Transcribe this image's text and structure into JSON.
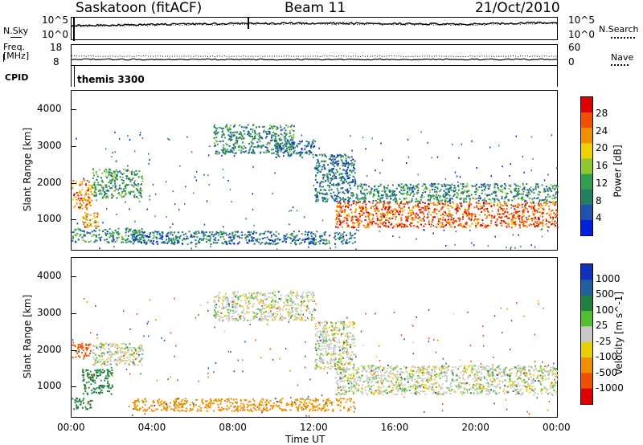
{
  "header": {
    "station": "Saskatoon (fitACF)",
    "beam": "Beam 11",
    "date": "21/Oct/2010"
  },
  "noise_panel": {
    "left_label": "N.Sky",
    "right_label": "N.Search",
    "left_ticks": [
      "10^5",
      "10^0"
    ],
    "right_ticks": [
      "10^5",
      "10^0"
    ]
  },
  "freq_panel": {
    "left_label_1": "Freq.",
    "left_label_2": "[MHz]",
    "right_label": "Nave",
    "left_ticks": [
      "18",
      "8"
    ],
    "right_ticks": [
      "60",
      "0"
    ]
  },
  "cpid_panel": {
    "label": "CPID",
    "program": "themis 3300"
  },
  "colors": {
    "power_scale": [
      "#0020e0",
      "#2050b0",
      "#208060",
      "#30a050",
      "#90c830",
      "#f0d000",
      "#f09000",
      "#f05000",
      "#e00000"
    ],
    "velocity_scale": [
      "#1030c0",
      "#2060a0",
      "#208040",
      "#50c030",
      "#c8c8c8",
      "#e8d000",
      "#f09000",
      "#f05000",
      "#e00000"
    ]
  },
  "chart_data": [
    {
      "type": "heatmap",
      "title": "",
      "parameter": "Power",
      "xlabel": "",
      "ylabel": "Slant Range [km]",
      "xlim": [
        "00:00",
        "24:00"
      ],
      "ylim": [
        180,
        4500
      ],
      "x_ticks": [
        "00:00",
        "04:00",
        "08:00",
        "12:00",
        "16:00",
        "20:00",
        "00:00"
      ],
      "y_ticks": [
        1000,
        2000,
        3000,
        4000
      ],
      "colorbar_label": "Power [dB]",
      "colorbar_ticks": [
        "28",
        "24",
        "20",
        "16",
        "12",
        "8",
        "4"
      ],
      "colorbar_range": [
        0,
        32
      ],
      "regions": [
        {
          "t": [
            0.0,
            1.0
          ],
          "range": [
            1300,
            2100
          ],
          "level": 24
        },
        {
          "t": [
            0.5,
            1.3
          ],
          "range": [
            800,
            1200
          ],
          "level": 22
        },
        {
          "t": [
            1.0,
            3.5
          ],
          "range": [
            1600,
            2400
          ],
          "level": 12
        },
        {
          "t": [
            0.0,
            3.5
          ],
          "range": [
            400,
            800
          ],
          "level": 10
        },
        {
          "t": [
            3.0,
            14.0
          ],
          "range": [
            350,
            700
          ],
          "level": 8
        },
        {
          "t": [
            7.0,
            11.0
          ],
          "range": [
            2800,
            3600
          ],
          "level": 10
        },
        {
          "t": [
            10.0,
            12.0
          ],
          "range": [
            2700,
            3200
          ],
          "level": 8
        },
        {
          "t": [
            12.0,
            14.0
          ],
          "range": [
            1500,
            2800
          ],
          "level": 8
        },
        {
          "t": [
            13.0,
            24.0
          ],
          "range": [
            800,
            1500
          ],
          "level": 26
        },
        {
          "t": [
            14.0,
            24.0
          ],
          "range": [
            1500,
            2000
          ],
          "level": 10
        }
      ]
    },
    {
      "type": "heatmap",
      "title": "",
      "parameter": "Velocity",
      "xlabel": "Time UT",
      "ylabel": "Slant Range [km]",
      "xlim": [
        "00:00",
        "24:00"
      ],
      "ylim": [
        180,
        4500
      ],
      "x_ticks": [
        "00:00",
        "04:00",
        "08:00",
        "12:00",
        "16:00",
        "20:00",
        "00:00"
      ],
      "y_ticks": [
        1000,
        2000,
        3000,
        4000
      ],
      "colorbar_label": "Velocity [m s^-1]",
      "colorbar_ticks": [
        "1000",
        "500",
        "100",
        "25",
        "-25",
        "-100",
        "-500",
        "-1000"
      ],
      "regions": [
        {
          "t": [
            0.0,
            1.0
          ],
          "range": [
            1800,
            2200
          ],
          "velocity": -500
        },
        {
          "t": [
            0.5,
            2.0
          ],
          "range": [
            800,
            1500
          ],
          "velocity": 200
        },
        {
          "t": [
            0.0,
            1.0
          ],
          "range": [
            400,
            700
          ],
          "velocity": 100
        },
        {
          "t": [
            1.0,
            3.5
          ],
          "range": [
            1600,
            2200
          ],
          "velocity": 0
        },
        {
          "t": [
            7.0,
            12.0
          ],
          "range": [
            2800,
            3600
          ],
          "velocity": 0
        },
        {
          "t": [
            12.0,
            14.0
          ],
          "range": [
            1500,
            2800
          ],
          "velocity": 0
        },
        {
          "t": [
            13.0,
            24.0
          ],
          "range": [
            800,
            1600
          ],
          "velocity": 0
        },
        {
          "t": [
            3.0,
            14.0
          ],
          "range": [
            350,
            700
          ],
          "velocity": -100
        }
      ]
    }
  ]
}
